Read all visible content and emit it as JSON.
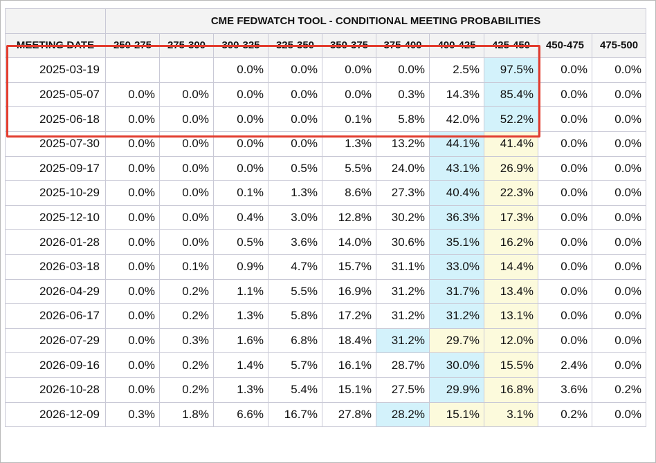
{
  "title": "CME FEDWATCH TOOL - CONDITIONAL MEETING PROBABILITIES",
  "date_header": "MEETING DATE",
  "ranges": [
    "250-275",
    "275-300",
    "300-325",
    "325-350",
    "350-375",
    "375-400",
    "400-425",
    "425-450",
    "450-475",
    "475-500"
  ],
  "highlight_colors": {
    "blue": "#d3f2fb",
    "yellow": "#fcfadc",
    "box": "#e23c2e"
  },
  "rows": [
    {
      "date": "2025-03-19",
      "values": [
        "",
        "",
        "0.0%",
        "0.0%",
        "0.0%",
        "0.0%",
        "2.5%",
        "97.5%",
        "0.0%",
        "0.0%"
      ],
      "hl": {
        "7": "blue"
      }
    },
    {
      "date": "2025-05-07",
      "values": [
        "0.0%",
        "0.0%",
        "0.0%",
        "0.0%",
        "0.0%",
        "0.3%",
        "14.3%",
        "85.4%",
        "0.0%",
        "0.0%"
      ],
      "hl": {
        "7": "blue"
      }
    },
    {
      "date": "2025-06-18",
      "values": [
        "0.0%",
        "0.0%",
        "0.0%",
        "0.0%",
        "0.1%",
        "5.8%",
        "42.0%",
        "52.2%",
        "0.0%",
        "0.0%"
      ],
      "hl": {
        "7": "blue"
      }
    },
    {
      "date": "2025-07-30",
      "values": [
        "0.0%",
        "0.0%",
        "0.0%",
        "0.0%",
        "1.3%",
        "13.2%",
        "44.1%",
        "41.4%",
        "0.0%",
        "0.0%"
      ],
      "hl": {
        "6": "blue",
        "7": "yellow"
      }
    },
    {
      "date": "2025-09-17",
      "values": [
        "0.0%",
        "0.0%",
        "0.0%",
        "0.5%",
        "5.5%",
        "24.0%",
        "43.1%",
        "26.9%",
        "0.0%",
        "0.0%"
      ],
      "hl": {
        "6": "blue",
        "7": "yellow"
      }
    },
    {
      "date": "2025-10-29",
      "values": [
        "0.0%",
        "0.0%",
        "0.1%",
        "1.3%",
        "8.6%",
        "27.3%",
        "40.4%",
        "22.3%",
        "0.0%",
        "0.0%"
      ],
      "hl": {
        "6": "blue",
        "7": "yellow"
      }
    },
    {
      "date": "2025-12-10",
      "values": [
        "0.0%",
        "0.0%",
        "0.4%",
        "3.0%",
        "12.8%",
        "30.2%",
        "36.3%",
        "17.3%",
        "0.0%",
        "0.0%"
      ],
      "hl": {
        "6": "blue",
        "7": "yellow"
      }
    },
    {
      "date": "2026-01-28",
      "values": [
        "0.0%",
        "0.0%",
        "0.5%",
        "3.6%",
        "14.0%",
        "30.6%",
        "35.1%",
        "16.2%",
        "0.0%",
        "0.0%"
      ],
      "hl": {
        "6": "blue",
        "7": "yellow"
      }
    },
    {
      "date": "2026-03-18",
      "values": [
        "0.0%",
        "0.1%",
        "0.9%",
        "4.7%",
        "15.7%",
        "31.1%",
        "33.0%",
        "14.4%",
        "0.0%",
        "0.0%"
      ],
      "hl": {
        "6": "blue",
        "7": "yellow"
      }
    },
    {
      "date": "2026-04-29",
      "values": [
        "0.0%",
        "0.2%",
        "1.1%",
        "5.5%",
        "16.9%",
        "31.2%",
        "31.7%",
        "13.4%",
        "0.0%",
        "0.0%"
      ],
      "hl": {
        "6": "blue",
        "7": "yellow"
      }
    },
    {
      "date": "2026-06-17",
      "values": [
        "0.0%",
        "0.2%",
        "1.3%",
        "5.8%",
        "17.2%",
        "31.2%",
        "31.2%",
        "13.1%",
        "0.0%",
        "0.0%"
      ],
      "hl": {
        "6": "blue",
        "7": "yellow"
      }
    },
    {
      "date": "2026-07-29",
      "values": [
        "0.0%",
        "0.3%",
        "1.6%",
        "6.8%",
        "18.4%",
        "31.2%",
        "29.7%",
        "12.0%",
        "0.0%",
        "0.0%"
      ],
      "hl": {
        "5": "blue",
        "6": "yellow",
        "7": "yellow"
      }
    },
    {
      "date": "2026-09-16",
      "values": [
        "0.0%",
        "0.2%",
        "1.4%",
        "5.7%",
        "16.1%",
        "28.7%",
        "30.0%",
        "15.5%",
        "2.4%",
        "0.0%"
      ],
      "hl": {
        "6": "blue",
        "7": "yellow"
      }
    },
    {
      "date": "2026-10-28",
      "values": [
        "0.0%",
        "0.2%",
        "1.3%",
        "5.4%",
        "15.1%",
        "27.5%",
        "29.9%",
        "16.8%",
        "3.6%",
        "0.2%"
      ],
      "hl": {
        "6": "blue",
        "7": "yellow"
      }
    },
    {
      "date": "2026-12-09",
      "values": [
        "0.3%",
        "1.8%",
        "6.6%",
        "16.7%",
        "27.8%",
        "28.2%",
        "15.1%",
        "3.1%",
        "0.2%",
        "0.0%"
      ],
      "hl": {
        "5": "blue",
        "6": "yellow",
        "7": "yellow"
      }
    }
  ]
}
